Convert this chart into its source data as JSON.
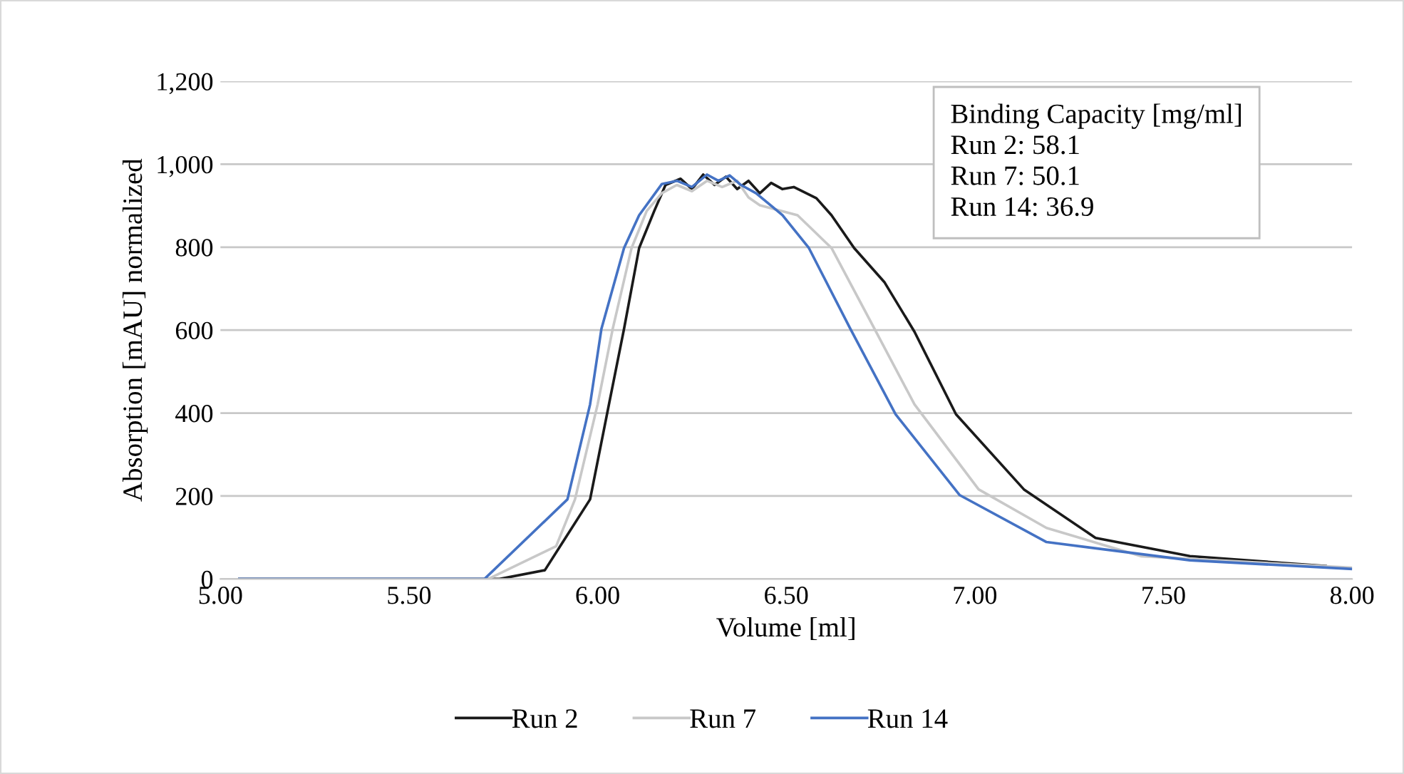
{
  "chart_data": {
    "type": "line",
    "xlabel": "Volume [ml]",
    "ylabel": "Absorption [mAU] normalized",
    "xlim": [
      5.0,
      8.0
    ],
    "ylim": [
      0,
      1200
    ],
    "xticks": [
      {
        "value": 5.0,
        "label": "5.00"
      },
      {
        "value": 5.5,
        "label": "5.50"
      },
      {
        "value": 6.0,
        "label": "6.00"
      },
      {
        "value": 6.5,
        "label": "6.50"
      },
      {
        "value": 7.0,
        "label": "7.00"
      },
      {
        "value": 7.5,
        "label": "7.50"
      },
      {
        "value": 8.0,
        "label": "8.00"
      }
    ],
    "yticks": [
      0,
      200,
      400,
      600,
      800,
      {
        "value": 1000,
        "label": "1,000"
      },
      {
        "value": 1200,
        "label": "1,200"
      }
    ],
    "grid": "y",
    "legend": "bottom",
    "line_style": "solid",
    "marker": "none",
    "annotations": [
      "Binding Capacity [mg/ml]\nRun 2: 58.1\nRun 7: 50.1\nRun 14: 36.9"
    ],
    "series": [
      {
        "name": "Run 2",
        "color": "#1a1a1a",
        "x": [
          5.05,
          5.74,
          5.86,
          5.98,
          6.03,
          6.07,
          6.11,
          6.15,
          6.18,
          6.22,
          6.25,
          6.28,
          6.31,
          6.34,
          6.37,
          6.4,
          6.43,
          6.46,
          6.49,
          6.52,
          6.58,
          6.62,
          6.68,
          6.76,
          6.84,
          6.95,
          7.13,
          7.32,
          7.57,
          7.93
        ],
        "values": [
          0,
          0,
          21,
          192,
          421,
          603,
          798,
          887,
          950,
          965,
          940,
          975,
          950,
          970,
          940,
          960,
          930,
          955,
          940,
          945,
          918,
          877,
          798,
          716,
          596,
          397,
          216,
          99,
          55,
          31
        ]
      },
      {
        "name": "Run 7",
        "color": "#c8c8c8",
        "x": [
          5.05,
          5.71,
          5.89,
          5.94,
          6.0,
          6.04,
          6.09,
          6.13,
          6.17,
          6.21,
          6.25,
          6.29,
          6.33,
          6.37,
          6.4,
          6.43,
          6.53,
          6.62,
          6.72,
          6.84,
          7.01,
          7.19,
          7.44,
          8.0
        ],
        "values": [
          0,
          0,
          79,
          192,
          421,
          603,
          798,
          887,
          930,
          950,
          935,
          960,
          945,
          960,
          920,
          901,
          877,
          798,
          627,
          421,
          216,
          123,
          55,
          27
        ]
      },
      {
        "name": "Run 14",
        "color": "#4472c4",
        "x": [
          5.05,
          5.7,
          5.92,
          5.98,
          6.01,
          6.07,
          6.11,
          6.17,
          6.21,
          6.25,
          6.29,
          6.32,
          6.35,
          6.38,
          6.42,
          6.46,
          6.49,
          6.56,
          6.67,
          6.79,
          6.96,
          7.19,
          7.57,
          8.0
        ],
        "values": [
          0,
          0,
          192,
          421,
          603,
          798,
          877,
          952,
          960,
          945,
          975,
          960,
          973,
          950,
          930,
          900,
          877,
          798,
          603,
          397,
          202,
          89,
          45,
          24
        ]
      }
    ]
  }
}
